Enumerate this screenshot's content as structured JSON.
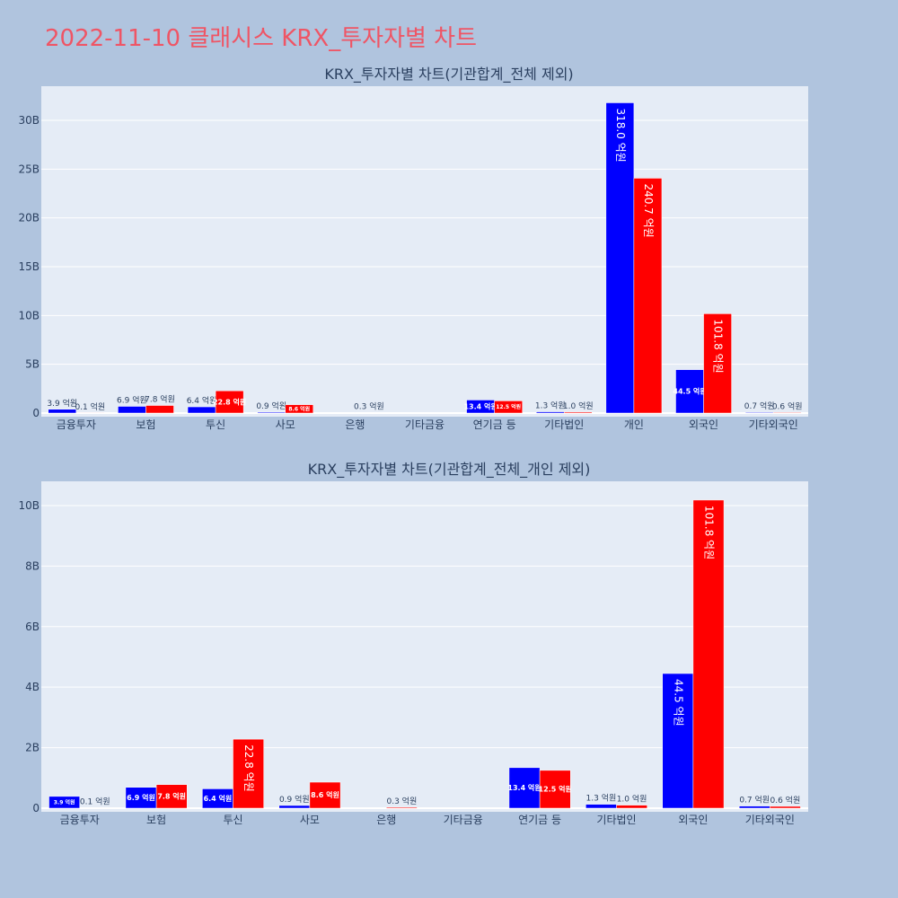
{
  "page": {
    "title": "2022-11-10 클래시스 KRX_투자자별 차트"
  },
  "colors": {
    "background": "#b0c4de",
    "plot_bg": "#e5ecf6",
    "title": "#ef5565",
    "series_a": "#0000ff",
    "series_b": "#ff0000"
  },
  "chart_data": [
    {
      "type": "bar",
      "title": "KRX_투자자별 차트(기관합계_전체 제외)",
      "categories": [
        "금융투자",
        "보험",
        "투신",
        "사모",
        "은행",
        "기타금융",
        "연기금 등",
        "기타법인",
        "개인",
        "외국인",
        "기타외국인"
      ],
      "series": [
        {
          "values": [
            0.39,
            0.69,
            0.64,
            0.09,
            0,
            0,
            1.34,
            0.13,
            31.8,
            4.45,
            0.07
          ],
          "labels": [
            "3.9 억원",
            "6.9 억원",
            "6.4 억원",
            "0.9 억원",
            "",
            "",
            "13.4 억원",
            "1.3 억원",
            "318.0 억원",
            "44.5 억원",
            "0.7 억원"
          ]
        },
        {
          "values": [
            0.01,
            0.78,
            2.28,
            0.86,
            0.03,
            0,
            1.25,
            0.1,
            24.07,
            10.18,
            0.06
          ],
          "labels": [
            "0.1 억원",
            "7.8 억원",
            "22.8 억원",
            "8.6 억원",
            "0.3 억원",
            "",
            "12.5 억원",
            "1.0 억원",
            "240.7 억원",
            "101.8 억원",
            "0.6 억원"
          ]
        }
      ],
      "yunit": "B",
      "yticks": [
        "0",
        "5B",
        "10B",
        "15B",
        "20B",
        "25B",
        "30B"
      ],
      "ylim": [
        0,
        33.5
      ],
      "grid": true,
      "legend": "none"
    },
    {
      "type": "bar",
      "title": "KRX_투자자별 차트(기관합계_전체_개인 제외)",
      "categories": [
        "금융투자",
        "보험",
        "투신",
        "사모",
        "은행",
        "기타금융",
        "연기금 등",
        "기타법인",
        "외국인",
        "기타외국인"
      ],
      "series": [
        {
          "values": [
            0.39,
            0.69,
            0.64,
            0.09,
            0,
            0,
            1.34,
            0.13,
            4.45,
            0.07
          ],
          "labels": [
            "3.9 억원",
            "6.9 억원",
            "6.4 억원",
            "0.9 억원",
            "",
            "",
            "13.4 억원",
            "1.3 억원",
            "44.5 억원",
            "0.7 억원"
          ]
        },
        {
          "values": [
            0.01,
            0.78,
            2.28,
            0.86,
            0.03,
            0,
            1.25,
            0.1,
            10.18,
            0.06
          ],
          "labels": [
            "0.1 억원",
            "7.8 억원",
            "22.8 억원",
            "8.6 억원",
            "0.3 억원",
            "",
            "12.5 억원",
            "1.0 억원",
            "101.8 억원",
            "0.6 억원"
          ]
        }
      ],
      "yunit": "B",
      "yticks": [
        "0",
        "2B",
        "4B",
        "6B",
        "8B",
        "10B"
      ],
      "ylim": [
        0,
        10.8
      ],
      "grid": true,
      "legend": "none"
    }
  ]
}
